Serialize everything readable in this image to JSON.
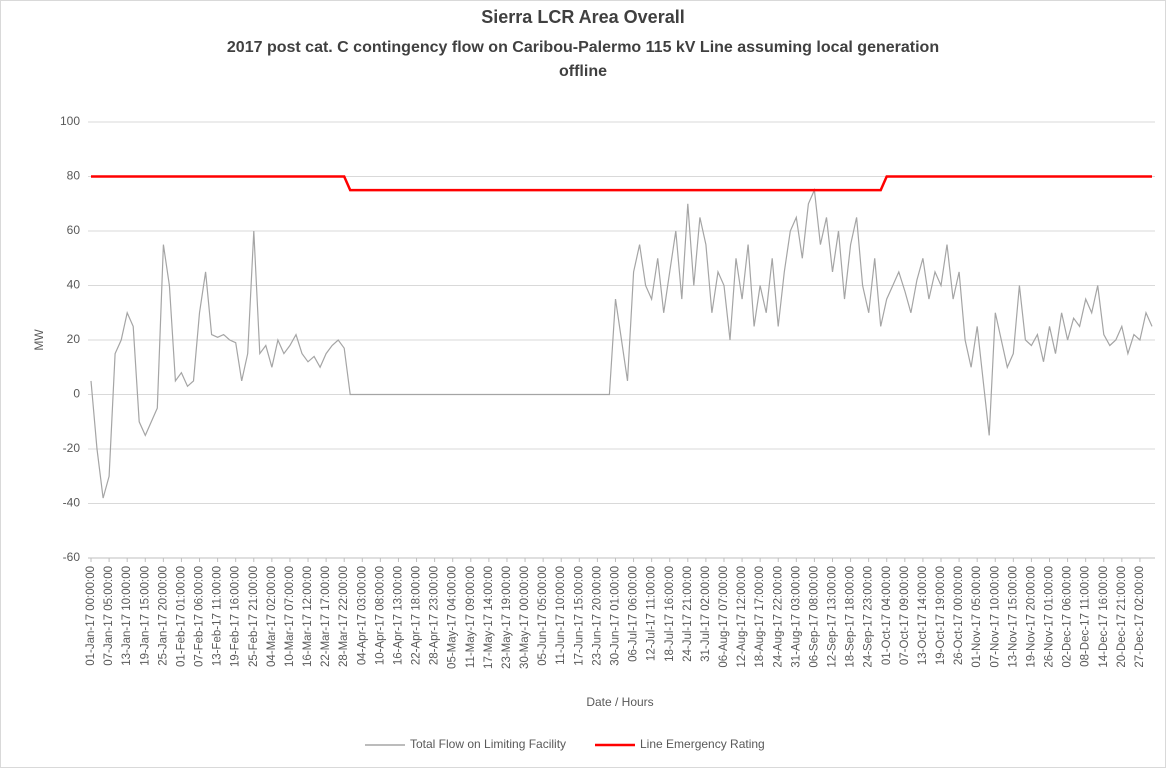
{
  "chart_data": {
    "type": "line",
    "title": "Sierra LCR Area Overall",
    "subtitle_lines": [
      "2017 post cat. C contingency flow on Caribou-Palermo 115 kV Line assuming local generation",
      "offline"
    ],
    "xlabel": "Date / Hours",
    "ylabel": "MW",
    "ylim": [
      -60,
      100
    ],
    "yticks": [
      -60,
      -40,
      -20,
      0,
      20,
      40,
      60,
      80,
      100
    ],
    "grid": true,
    "categories": [
      "01-Jan-17 00:00:00",
      null,
      null,
      "07-Jan-17 05:00:00",
      null,
      null,
      "13-Jan-17 10:00:00",
      null,
      null,
      "19-Jan-17 15:00:00",
      null,
      null,
      "25-Jan-17 20:00:00",
      null,
      null,
      "01-Feb-17 01:00:00",
      null,
      null,
      "07-Feb-17 06:00:00",
      null,
      null,
      "13-Feb-17 11:00:00",
      null,
      null,
      "19-Feb-17 16:00:00",
      null,
      null,
      "25-Feb-17 21:00:00",
      null,
      null,
      "04-Mar-17 02:00:00",
      null,
      null,
      "10-Mar-17 07:00:00",
      null,
      null,
      "16-Mar-17 12:00:00",
      null,
      null,
      "22-Mar-17 17:00:00",
      null,
      null,
      "28-Mar-17 22:00:00",
      null,
      null,
      "04-Apr-17 03:00:00",
      null,
      null,
      "10-Apr-17 08:00:00",
      null,
      null,
      "16-Apr-17 13:00:00",
      null,
      null,
      "22-Apr-17 18:00:00",
      null,
      null,
      "28-Apr-17 23:00:00",
      null,
      null,
      "05-May-17 04:00:00",
      null,
      null,
      "11-May-17 09:00:00",
      null,
      null,
      "17-May-17 14:00:00",
      null,
      null,
      "23-May-17 19:00:00",
      null,
      null,
      "30-May-17 00:00:00",
      null,
      null,
      "05-Jun-17 05:00:00",
      null,
      null,
      "11-Jun-17 10:00:00",
      null,
      null,
      "17-Jun-17 15:00:00",
      null,
      null,
      "23-Jun-17 20:00:00",
      null,
      null,
      "30-Jun-17 01:00:00",
      null,
      null,
      "06-Jul-17 06:00:00",
      null,
      null,
      "12-Jul-17 11:00:00",
      null,
      null,
      "18-Jul-17 16:00:00",
      null,
      null,
      "24-Jul-17 21:00:00",
      null,
      null,
      "31-Jul-17 02:00:00",
      null,
      null,
      "06-Aug-17 07:00:00",
      null,
      null,
      "12-Aug-17 12:00:00",
      null,
      null,
      "18-Aug-17 17:00:00",
      null,
      null,
      "24-Aug-17 22:00:00",
      null,
      null,
      "31-Aug-17 03:00:00",
      null,
      null,
      "06-Sep-17 08:00:00",
      null,
      null,
      "12-Sep-17 13:00:00",
      null,
      null,
      "18-Sep-17 18:00:00",
      null,
      null,
      "24-Sep-17 23:00:00",
      null,
      null,
      "01-Oct-17 04:00:00",
      null,
      null,
      "07-Oct-17 09:00:00",
      null,
      null,
      "13-Oct-17 14:00:00",
      null,
      null,
      "19-Oct-17 19:00:00",
      null,
      null,
      "26-Oct-17 00:00:00",
      null,
      null,
      "01-Nov-17 05:00:00",
      null,
      null,
      "07-Nov-17 10:00:00",
      null,
      null,
      "13-Nov-17 15:00:00",
      null,
      null,
      "19-Nov-17 20:00:00",
      null,
      null,
      "26-Nov-17 01:00:00",
      null,
      null,
      "02-Dec-17 06:00:00",
      null,
      null,
      "08-Dec-17 11:00:00",
      null,
      null,
      "14-Dec-17 16:00:00",
      null,
      null,
      "20-Dec-17 21:00:00",
      null,
      null,
      "27-Dec-17 02:00:00",
      null,
      null
    ],
    "series": [
      {
        "name": "Total Flow on Limiting Facility",
        "color": "#a5a5a5",
        "values": [
          5,
          -20,
          -38,
          -30,
          15,
          20,
          30,
          25,
          -10,
          -15,
          -10,
          -5,
          55,
          40,
          5,
          8,
          3,
          5,
          30,
          45,
          22,
          21,
          22,
          20,
          19,
          5,
          15,
          60,
          15,
          18,
          10,
          20,
          15,
          18,
          22,
          15,
          12,
          14,
          10,
          15,
          18,
          20,
          17,
          0,
          0,
          0,
          0,
          0,
          0,
          0,
          0,
          0,
          0,
          0,
          0,
          0,
          0,
          0,
          0,
          0,
          0,
          0,
          0,
          0,
          0,
          0,
          0,
          0,
          0,
          0,
          0,
          0,
          0,
          0,
          0,
          0,
          0,
          0,
          0,
          0,
          0,
          0,
          0,
          0,
          0,
          0,
          0,
          35,
          20,
          5,
          45,
          55,
          40,
          35,
          50,
          30,
          45,
          60,
          35,
          70,
          40,
          65,
          55,
          30,
          45,
          40,
          20,
          50,
          35,
          55,
          25,
          40,
          30,
          50,
          25,
          45,
          60,
          65,
          50,
          70,
          75,
          55,
          65,
          45,
          60,
          35,
          55,
          65,
          40,
          30,
          50,
          25,
          35,
          40,
          45,
          38,
          30,
          42,
          50,
          35,
          45,
          40,
          55,
          35,
          45,
          20,
          10,
          25,
          5,
          -15,
          30,
          20,
          10,
          15,
          40,
          20,
          18,
          22,
          12,
          25,
          15,
          30,
          20,
          28,
          25,
          35,
          30,
          40,
          22,
          18,
          20,
          25,
          15,
          22,
          20,
          30,
          25
        ]
      },
      {
        "name": "Line Emergency Rating",
        "color": "#ff0000",
        "values": [
          80,
          80,
          80,
          80,
          80,
          80,
          80,
          80,
          80,
          80,
          80,
          80,
          80,
          80,
          80,
          80,
          80,
          80,
          80,
          80,
          80,
          80,
          80,
          80,
          80,
          80,
          80,
          80,
          80,
          80,
          80,
          80,
          80,
          80,
          80,
          80,
          80,
          80,
          80,
          80,
          80,
          80,
          80,
          75,
          75,
          75,
          75,
          75,
          75,
          75,
          75,
          75,
          75,
          75,
          75,
          75,
          75,
          75,
          75,
          75,
          75,
          75,
          75,
          75,
          75,
          75,
          75,
          75,
          75,
          75,
          75,
          75,
          75,
          75,
          75,
          75,
          75,
          75,
          75,
          75,
          75,
          75,
          75,
          75,
          75,
          75,
          75,
          75,
          75,
          75,
          75,
          75,
          75,
          75,
          75,
          75,
          75,
          75,
          75,
          75,
          75,
          75,
          75,
          75,
          75,
          75,
          75,
          75,
          75,
          75,
          75,
          75,
          75,
          75,
          75,
          75,
          75,
          75,
          75,
          75,
          75,
          75,
          75,
          75,
          75,
          75,
          75,
          75,
          75,
          75,
          75,
          75,
          80,
          80,
          80,
          80,
          80,
          80,
          80,
          80,
          80,
          80,
          80,
          80,
          80,
          80,
          80,
          80,
          80,
          80,
          80,
          80,
          80,
          80,
          80,
          80,
          80,
          80,
          80,
          80,
          80,
          80,
          80,
          80,
          80,
          80,
          80,
          80,
          80,
          80,
          80,
          80,
          80,
          80,
          80,
          80,
          80
        ]
      }
    ]
  }
}
